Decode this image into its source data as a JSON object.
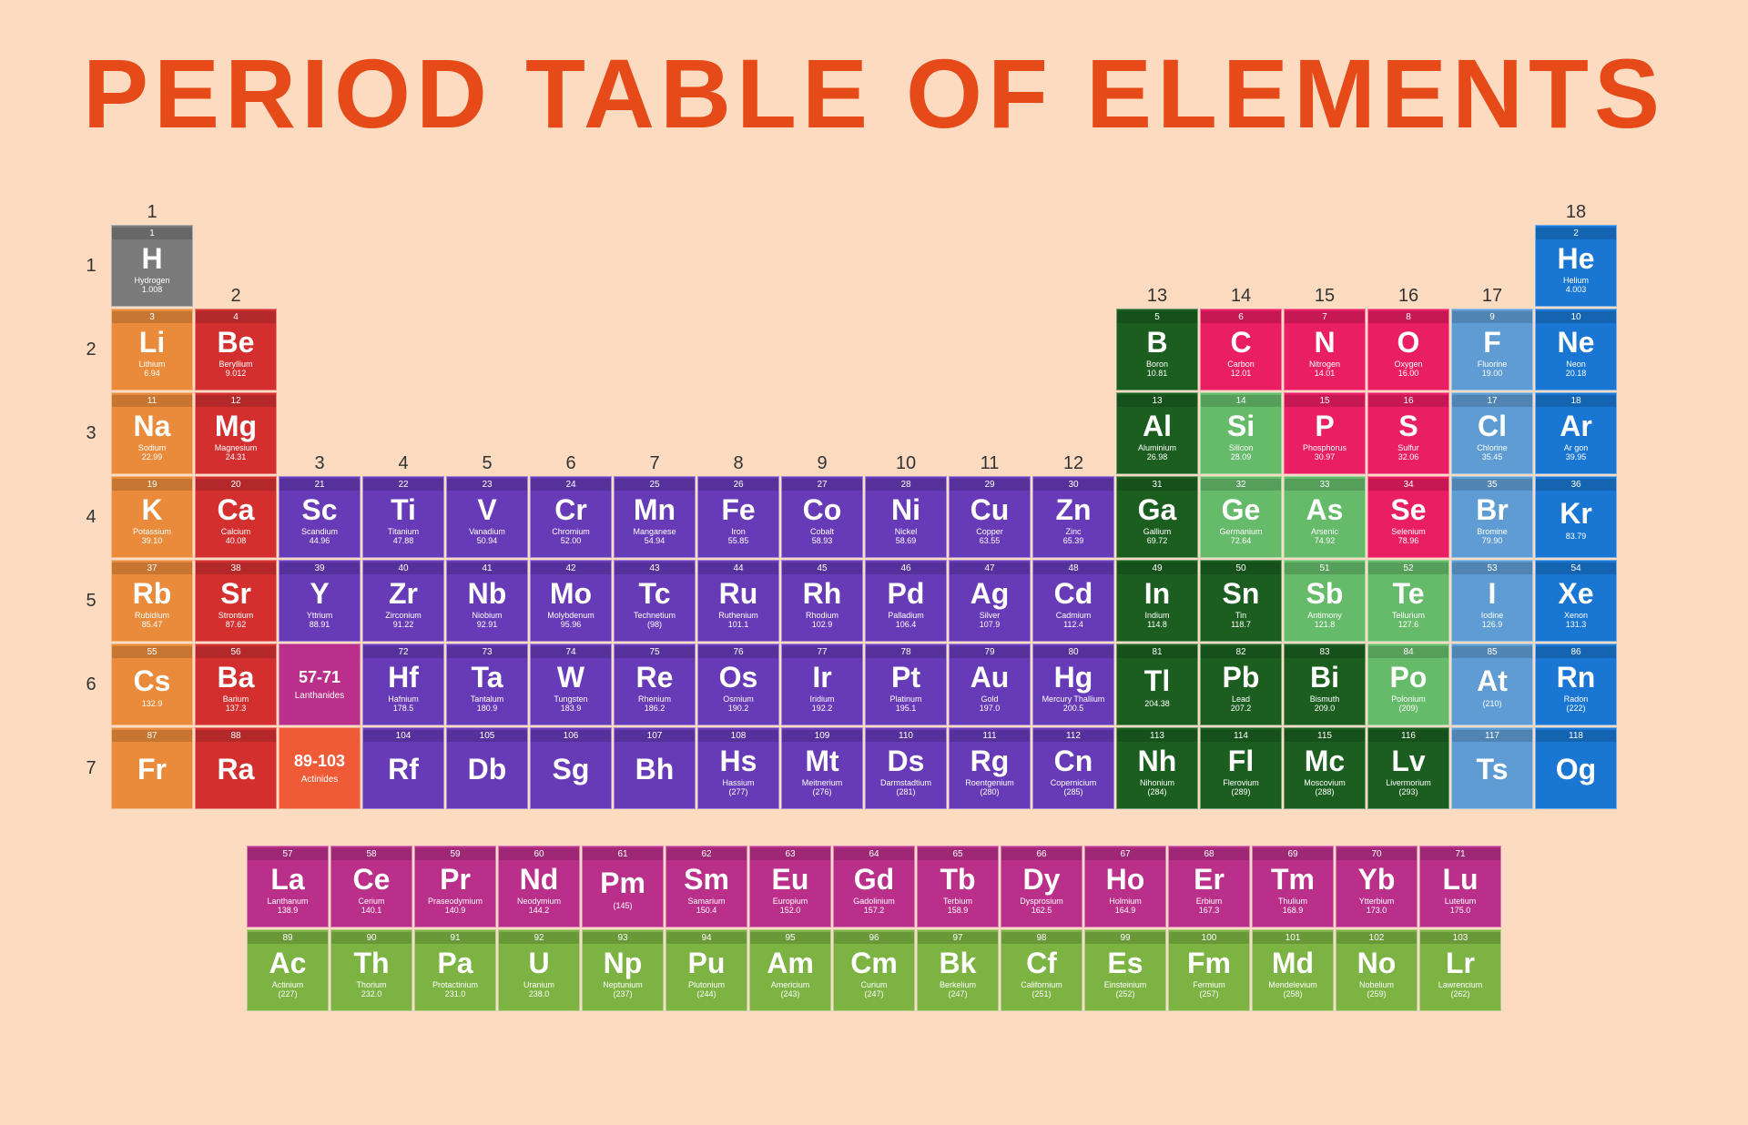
{
  "title": "PERIOD TABLE OF ELEMENTS",
  "colors": {
    "background": "#fcdbc1",
    "title": "#e64a19",
    "categories": {
      "nonmetal": "#7a7a7a",
      "alkali": "#e98b3a",
      "alkaline_earth": "#d32f2f",
      "transition": "#673ab7",
      "post_transition": "#1b5e20",
      "metalloid": "#66bb6a",
      "reactive_nonmetal": "#e91e63",
      "halogen": "#5e9cd3",
      "noble_gas": "#1976d2",
      "lanthanide": "#ba2f8a",
      "actinide": "#7cb342",
      "lanthanide_ph": "#ba2f8a",
      "actinide_ph": "#ef5b36"
    }
  },
  "group_labels": [
    "1",
    "2",
    "3",
    "4",
    "5",
    "6",
    "7",
    "8",
    "9",
    "10",
    "11",
    "12",
    "13",
    "14",
    "15",
    "16",
    "17",
    "18"
  ],
  "period_labels": [
    "1",
    "2",
    "3",
    "4",
    "5",
    "6",
    "7"
  ],
  "placeholders": {
    "lanth": {
      "range": "57-71",
      "label": "Lanthanides"
    },
    "act": {
      "range": "89-103",
      "label": "Actinides"
    }
  },
  "elements": [
    {
      "n": 1,
      "sym": "H",
      "name": "Hydrogen",
      "mass": "1.008",
      "p": 1,
      "g": 1,
      "cat": "nonmetal"
    },
    {
      "n": 2,
      "sym": "He",
      "name": "Helium",
      "mass": "4.003",
      "p": 1,
      "g": 18,
      "cat": "noble_gas"
    },
    {
      "n": 3,
      "sym": "Li",
      "name": "Lithium",
      "mass": "6.94",
      "p": 2,
      "g": 1,
      "cat": "alkali"
    },
    {
      "n": 4,
      "sym": "Be",
      "name": "Beryllium",
      "mass": "9.012",
      "p": 2,
      "g": 2,
      "cat": "alkaline_earth"
    },
    {
      "n": 5,
      "sym": "B",
      "name": "Boron",
      "mass": "10.81",
      "p": 2,
      "g": 13,
      "cat": "post_transition"
    },
    {
      "n": 6,
      "sym": "C",
      "name": "Carbon",
      "mass": "12.01",
      "p": 2,
      "g": 14,
      "cat": "reactive_nonmetal"
    },
    {
      "n": 7,
      "sym": "N",
      "name": "Nitrogen",
      "mass": "14.01",
      "p": 2,
      "g": 15,
      "cat": "reactive_nonmetal"
    },
    {
      "n": 8,
      "sym": "O",
      "name": "Oxygen",
      "mass": "16.00",
      "p": 2,
      "g": 16,
      "cat": "reactive_nonmetal"
    },
    {
      "n": 9,
      "sym": "F",
      "name": "Fluorine",
      "mass": "19.00",
      "p": 2,
      "g": 17,
      "cat": "halogen"
    },
    {
      "n": 10,
      "sym": "Ne",
      "name": "Neon",
      "mass": "20.18",
      "p": 2,
      "g": 18,
      "cat": "noble_gas"
    },
    {
      "n": 11,
      "sym": "Na",
      "name": "Sodium",
      "mass": "22.99",
      "p": 3,
      "g": 1,
      "cat": "alkali"
    },
    {
      "n": 12,
      "sym": "Mg",
      "name": "Magnesium",
      "mass": "24.31",
      "p": 3,
      "g": 2,
      "cat": "alkaline_earth"
    },
    {
      "n": 13,
      "sym": "Al",
      "name": "Aluminium",
      "mass": "26.98",
      "p": 3,
      "g": 13,
      "cat": "post_transition"
    },
    {
      "n": 14,
      "sym": "Si",
      "name": "Silicon",
      "mass": "28.09",
      "p": 3,
      "g": 14,
      "cat": "metalloid"
    },
    {
      "n": 15,
      "sym": "P",
      "name": "Phosphorus",
      "mass": "30.97",
      "p": 3,
      "g": 15,
      "cat": "reactive_nonmetal"
    },
    {
      "n": 16,
      "sym": "S",
      "name": "Sulfur",
      "mass": "32.06",
      "p": 3,
      "g": 16,
      "cat": "reactive_nonmetal"
    },
    {
      "n": 17,
      "sym": "Cl",
      "name": "Chlorine",
      "mass": "35.45",
      "p": 3,
      "g": 17,
      "cat": "halogen"
    },
    {
      "n": 18,
      "sym": "Ar",
      "name": "Ar gon",
      "mass": "39.95",
      "p": 3,
      "g": 18,
      "cat": "noble_gas"
    },
    {
      "n": 19,
      "sym": "K",
      "name": "Potassium",
      "mass": "39.10",
      "p": 4,
      "g": 1,
      "cat": "alkali"
    },
    {
      "n": 20,
      "sym": "Ca",
      "name": "Calcium",
      "mass": "40.08",
      "p": 4,
      "g": 2,
      "cat": "alkaline_earth"
    },
    {
      "n": 21,
      "sym": "Sc",
      "name": "Scandium",
      "mass": "44.96",
      "p": 4,
      "g": 3,
      "cat": "transition"
    },
    {
      "n": 22,
      "sym": "Ti",
      "name": "Titanium",
      "mass": "47.88",
      "p": 4,
      "g": 4,
      "cat": "transition"
    },
    {
      "n": 23,
      "sym": "V",
      "name": "Vanadium",
      "mass": "50.94",
      "p": 4,
      "g": 5,
      "cat": "transition"
    },
    {
      "n": 24,
      "sym": "Cr",
      "name": "Chromium",
      "mass": "52.00",
      "p": 4,
      "g": 6,
      "cat": "transition"
    },
    {
      "n": 25,
      "sym": "Mn",
      "name": "Manganese",
      "mass": "54.94",
      "p": 4,
      "g": 7,
      "cat": "transition"
    },
    {
      "n": 26,
      "sym": "Fe",
      "name": "Iron",
      "mass": "55.85",
      "p": 4,
      "g": 8,
      "cat": "transition"
    },
    {
      "n": 27,
      "sym": "Co",
      "name": "Cobalt",
      "mass": "58.93",
      "p": 4,
      "g": 9,
      "cat": "transition"
    },
    {
      "n": 28,
      "sym": "Ni",
      "name": "Nickel",
      "mass": "58.69",
      "p": 4,
      "g": 10,
      "cat": "transition"
    },
    {
      "n": 29,
      "sym": "Cu",
      "name": "Copper",
      "mass": "63.55",
      "p": 4,
      "g": 11,
      "cat": "transition"
    },
    {
      "n": 30,
      "sym": "Zn",
      "name": "Zinc",
      "mass": "65.39",
      "p": 4,
      "g": 12,
      "cat": "transition"
    },
    {
      "n": 31,
      "sym": "Ga",
      "name": "Gallium",
      "mass": "69.72",
      "p": 4,
      "g": 13,
      "cat": "post_transition"
    },
    {
      "n": 32,
      "sym": "Ge",
      "name": "Germanium",
      "mass": "72.64",
      "p": 4,
      "g": 14,
      "cat": "metalloid"
    },
    {
      "n": 33,
      "sym": "As",
      "name": "Arsenic",
      "mass": "74.92",
      "p": 4,
      "g": 15,
      "cat": "metalloid"
    },
    {
      "n": 34,
      "sym": "Se",
      "name": "Selenium",
      "mass": "78.96",
      "p": 4,
      "g": 16,
      "cat": "reactive_nonmetal"
    },
    {
      "n": 35,
      "sym": "Br",
      "name": "Bromine",
      "mass": "79.90",
      "p": 4,
      "g": 17,
      "cat": "halogen"
    },
    {
      "n": 36,
      "sym": "Kr",
      "name": "",
      "mass": "83.79",
      "p": 4,
      "g": 18,
      "cat": "noble_gas"
    },
    {
      "n": 37,
      "sym": "Rb",
      "name": "Rubidium",
      "mass": "85.47",
      "p": 5,
      "g": 1,
      "cat": "alkali"
    },
    {
      "n": 38,
      "sym": "Sr",
      "name": "Strontium",
      "mass": "87.62",
      "p": 5,
      "g": 2,
      "cat": "alkaline_earth"
    },
    {
      "n": 39,
      "sym": "Y",
      "name": "Yttrium",
      "mass": "88.91",
      "p": 5,
      "g": 3,
      "cat": "transition"
    },
    {
      "n": 40,
      "sym": "Zr",
      "name": "Zirconium",
      "mass": "91.22",
      "p": 5,
      "g": 4,
      "cat": "transition"
    },
    {
      "n": 41,
      "sym": "Nb",
      "name": "Niobium",
      "mass": "92.91",
      "p": 5,
      "g": 5,
      "cat": "transition"
    },
    {
      "n": 42,
      "sym": "Mo",
      "name": "Molybdenum",
      "mass": "95.96",
      "p": 5,
      "g": 6,
      "cat": "transition"
    },
    {
      "n": 43,
      "sym": "Tc",
      "name": "Technetium",
      "mass": "(98)",
      "p": 5,
      "g": 7,
      "cat": "transition"
    },
    {
      "n": 44,
      "sym": "Ru",
      "name": "Ruthenium",
      "mass": "101.1",
      "p": 5,
      "g": 8,
      "cat": "transition"
    },
    {
      "n": 45,
      "sym": "Rh",
      "name": "Rhodium",
      "mass": "102.9",
      "p": 5,
      "g": 9,
      "cat": "transition"
    },
    {
      "n": 46,
      "sym": "Pd",
      "name": "Palladium",
      "mass": "106.4",
      "p": 5,
      "g": 10,
      "cat": "transition"
    },
    {
      "n": 47,
      "sym": "Ag",
      "name": "Silver",
      "mass": "107.9",
      "p": 5,
      "g": 11,
      "cat": "transition"
    },
    {
      "n": 48,
      "sym": "Cd",
      "name": "Cadmium",
      "mass": "112.4",
      "p": 5,
      "g": 12,
      "cat": "transition"
    },
    {
      "n": 49,
      "sym": "In",
      "name": "Indium",
      "mass": "114.8",
      "p": 5,
      "g": 13,
      "cat": "post_transition"
    },
    {
      "n": 50,
      "sym": "Sn",
      "name": "Tin",
      "mass": "118.7",
      "p": 5,
      "g": 14,
      "cat": "post_transition"
    },
    {
      "n": 51,
      "sym": "Sb",
      "name": "Antimony",
      "mass": "121.8",
      "p": 5,
      "g": 15,
      "cat": "metalloid"
    },
    {
      "n": 52,
      "sym": "Te",
      "name": "Tellurium",
      "mass": "127.6",
      "p": 5,
      "g": 16,
      "cat": "metalloid"
    },
    {
      "n": 53,
      "sym": "I",
      "name": "Iodine",
      "mass": "126.9",
      "p": 5,
      "g": 17,
      "cat": "halogen"
    },
    {
      "n": 54,
      "sym": "Xe",
      "name": "Xenon",
      "mass": "131.3",
      "p": 5,
      "g": 18,
      "cat": "noble_gas"
    },
    {
      "n": 55,
      "sym": "Cs",
      "name": "",
      "mass": "132.9",
      "p": 6,
      "g": 1,
      "cat": "alkali"
    },
    {
      "n": 56,
      "sym": "Ba",
      "name": "Barium",
      "mass": "137.3",
      "p": 6,
      "g": 2,
      "cat": "alkaline_earth"
    },
    {
      "n": 72,
      "sym": "Hf",
      "name": "Hafnium",
      "mass": "178.5",
      "p": 6,
      "g": 4,
      "cat": "transition"
    },
    {
      "n": 73,
      "sym": "Ta",
      "name": "Tantalum",
      "mass": "180.9",
      "p": 6,
      "g": 5,
      "cat": "transition"
    },
    {
      "n": 74,
      "sym": "W",
      "name": "Tungsten",
      "mass": "183.9",
      "p": 6,
      "g": 6,
      "cat": "transition"
    },
    {
      "n": 75,
      "sym": "Re",
      "name": "Rhenium",
      "mass": "186.2",
      "p": 6,
      "g": 7,
      "cat": "transition"
    },
    {
      "n": 76,
      "sym": "Os",
      "name": "Osmium",
      "mass": "190.2",
      "p": 6,
      "g": 8,
      "cat": "transition"
    },
    {
      "n": 77,
      "sym": "Ir",
      "name": "Iridium",
      "mass": "192.2",
      "p": 6,
      "g": 9,
      "cat": "transition"
    },
    {
      "n": 78,
      "sym": "Pt",
      "name": "Platinum",
      "mass": "195.1",
      "p": 6,
      "g": 10,
      "cat": "transition"
    },
    {
      "n": 79,
      "sym": "Au",
      "name": "Gold",
      "mass": "197.0",
      "p": 6,
      "g": 11,
      "cat": "transition"
    },
    {
      "n": 80,
      "sym": "Hg",
      "name": "Mercury Thallium",
      "mass": "200.5",
      "p": 6,
      "g": 12,
      "cat": "transition"
    },
    {
      "n": 81,
      "sym": "Tl",
      "name": "",
      "mass": "204.38",
      "p": 6,
      "g": 13,
      "cat": "post_transition"
    },
    {
      "n": 82,
      "sym": "Pb",
      "name": "Lead",
      "mass": "207.2",
      "p": 6,
      "g": 14,
      "cat": "post_transition"
    },
    {
      "n": 83,
      "sym": "Bi",
      "name": "Bismuth",
      "mass": "209.0",
      "p": 6,
      "g": 15,
      "cat": "post_transition"
    },
    {
      "n": 84,
      "sym": "Po",
      "name": "Polonium",
      "mass": "(209)",
      "p": 6,
      "g": 16,
      "cat": "metalloid"
    },
    {
      "n": 85,
      "sym": "At",
      "name": "",
      "mass": "(210)",
      "p": 6,
      "g": 17,
      "cat": "halogen"
    },
    {
      "n": 86,
      "sym": "Rn",
      "name": "Radon",
      "mass": "(222)",
      "p": 6,
      "g": 18,
      "cat": "noble_gas"
    },
    {
      "n": 87,
      "sym": "Fr",
      "name": "",
      "mass": "",
      "p": 7,
      "g": 1,
      "cat": "alkali"
    },
    {
      "n": 88,
      "sym": "Ra",
      "name": "",
      "mass": "",
      "p": 7,
      "g": 2,
      "cat": "alkaline_earth"
    },
    {
      "n": 104,
      "sym": "Rf",
      "name": "",
      "mass": "",
      "p": 7,
      "g": 4,
      "cat": "transition"
    },
    {
      "n": 105,
      "sym": "Db",
      "name": "",
      "mass": "",
      "p": 7,
      "g": 5,
      "cat": "transition"
    },
    {
      "n": 106,
      "sym": "Sg",
      "name": "",
      "mass": "",
      "p": 7,
      "g": 6,
      "cat": "transition"
    },
    {
      "n": 107,
      "sym": "Bh",
      "name": "",
      "mass": "",
      "p": 7,
      "g": 7,
      "cat": "transition"
    },
    {
      "n": 108,
      "sym": "Hs",
      "name": "Hassium",
      "mass": "(277)",
      "p": 7,
      "g": 8,
      "cat": "transition"
    },
    {
      "n": 109,
      "sym": "Mt",
      "name": "Meitnerium",
      "mass": "(276)",
      "p": 7,
      "g": 9,
      "cat": "transition"
    },
    {
      "n": 110,
      "sym": "Ds",
      "name": "Darmstadtium",
      "mass": "(281)",
      "p": 7,
      "g": 10,
      "cat": "transition"
    },
    {
      "n": 111,
      "sym": "Rg",
      "name": "Roentgenium",
      "mass": "(280)",
      "p": 7,
      "g": 11,
      "cat": "transition"
    },
    {
      "n": 112,
      "sym": "Cn",
      "name": "Copernicium",
      "mass": "(285)",
      "p": 7,
      "g": 12,
      "cat": "transition"
    },
    {
      "n": 113,
      "sym": "Nh",
      "name": "Nihonium",
      "mass": "(284)",
      "p": 7,
      "g": 13,
      "cat": "post_transition"
    },
    {
      "n": 114,
      "sym": "Fl",
      "name": "Flerovium",
      "mass": "(289)",
      "p": 7,
      "g": 14,
      "cat": "post_transition"
    },
    {
      "n": 115,
      "sym": "Mc",
      "name": "Moscovium",
      "mass": "(288)",
      "p": 7,
      "g": 15,
      "cat": "post_transition"
    },
    {
      "n": 116,
      "sym": "Lv",
      "name": "Livermorium",
      "mass": "(293)",
      "p": 7,
      "g": 16,
      "cat": "post_transition"
    },
    {
      "n": 117,
      "sym": "Ts",
      "name": "",
      "mass": "",
      "p": 7,
      "g": 17,
      "cat": "halogen"
    },
    {
      "n": 118,
      "sym": "Og",
      "name": "",
      "mass": "",
      "p": 7,
      "g": 18,
      "cat": "noble_gas"
    }
  ],
  "lanthanides": [
    {
      "n": 57,
      "sym": "La",
      "name": "Lanthanum",
      "mass": "138.9",
      "cat": "lanthanide"
    },
    {
      "n": 58,
      "sym": "Ce",
      "name": "Cerium",
      "mass": "140.1",
      "cat": "lanthanide"
    },
    {
      "n": 59,
      "sym": "Pr",
      "name": "Praseodymium",
      "mass": "140.9",
      "cat": "lanthanide"
    },
    {
      "n": 60,
      "sym": "Nd",
      "name": "Neodymium",
      "mass": "144.2",
      "cat": "lanthanide"
    },
    {
      "n": 61,
      "sym": "Pm",
      "name": "",
      "mass": "(145)",
      "cat": "lanthanide"
    },
    {
      "n": 62,
      "sym": "Sm",
      "name": "Samarium",
      "mass": "150.4",
      "cat": "lanthanide"
    },
    {
      "n": 63,
      "sym": "Eu",
      "name": "Europium",
      "mass": "152.0",
      "cat": "lanthanide"
    },
    {
      "n": 64,
      "sym": "Gd",
      "name": "Gadolinium",
      "mass": "157.2",
      "cat": "lanthanide"
    },
    {
      "n": 65,
      "sym": "Tb",
      "name": "Terbium",
      "mass": "158.9",
      "cat": "lanthanide"
    },
    {
      "n": 66,
      "sym": "Dy",
      "name": "Dysprosium",
      "mass": "162.5",
      "cat": "lanthanide"
    },
    {
      "n": 67,
      "sym": "Ho",
      "name": "Holmium",
      "mass": "164.9",
      "cat": "lanthanide"
    },
    {
      "n": 68,
      "sym": "Er",
      "name": "Erbium",
      "mass": "167.3",
      "cat": "lanthanide"
    },
    {
      "n": 69,
      "sym": "Tm",
      "name": "Thulium",
      "mass": "168.9",
      "cat": "lanthanide"
    },
    {
      "n": 70,
      "sym": "Yb",
      "name": "Ytterbium",
      "mass": "173.0",
      "cat": "lanthanide"
    },
    {
      "n": 71,
      "sym": "Lu",
      "name": "Lutetium",
      "mass": "175.0",
      "cat": "lanthanide"
    }
  ],
  "actinides": [
    {
      "n": 89,
      "sym": "Ac",
      "name": "Actinium",
      "mass": "(227)",
      "cat": "actinide"
    },
    {
      "n": 90,
      "sym": "Th",
      "name": "Thorium",
      "mass": "232.0",
      "cat": "actinide"
    },
    {
      "n": 91,
      "sym": "Pa",
      "name": "Protactinium",
      "mass": "231.0",
      "cat": "actinide"
    },
    {
      "n": 92,
      "sym": "U",
      "name": "Uranium",
      "mass": "238.0",
      "cat": "actinide"
    },
    {
      "n": 93,
      "sym": "Np",
      "name": "Neptunium",
      "mass": "(237)",
      "cat": "actinide"
    },
    {
      "n": 94,
      "sym": "Pu",
      "name": "Plutonium",
      "mass": "(244)",
      "cat": "actinide"
    },
    {
      "n": 95,
      "sym": "Am",
      "name": "Americium",
      "mass": "(243)",
      "cat": "actinide"
    },
    {
      "n": 96,
      "sym": "Cm",
      "name": "Curium",
      "mass": "(247)",
      "cat": "actinide"
    },
    {
      "n": 97,
      "sym": "Bk",
      "name": "Berkelium",
      "mass": "(247)",
      "cat": "actinide"
    },
    {
      "n": 98,
      "sym": "Cf",
      "name": "Californium",
      "mass": "(251)",
      "cat": "actinide"
    },
    {
      "n": 99,
      "sym": "Es",
      "name": "Einsteinium",
      "mass": "(252)",
      "cat": "actinide"
    },
    {
      "n": 100,
      "sym": "Fm",
      "name": "Fermium",
      "mass": "(257)",
      "cat": "actinide"
    },
    {
      "n": 101,
      "sym": "Md",
      "name": "Mendelevium",
      "mass": "(258)",
      "cat": "actinide"
    },
    {
      "n": 102,
      "sym": "No",
      "name": "Nobelium",
      "mass": "(259)",
      "cat": "actinide"
    },
    {
      "n": 103,
      "sym": "Lr",
      "name": "Lawrencium",
      "mass": "(262)",
      "cat": "actinide"
    }
  ]
}
